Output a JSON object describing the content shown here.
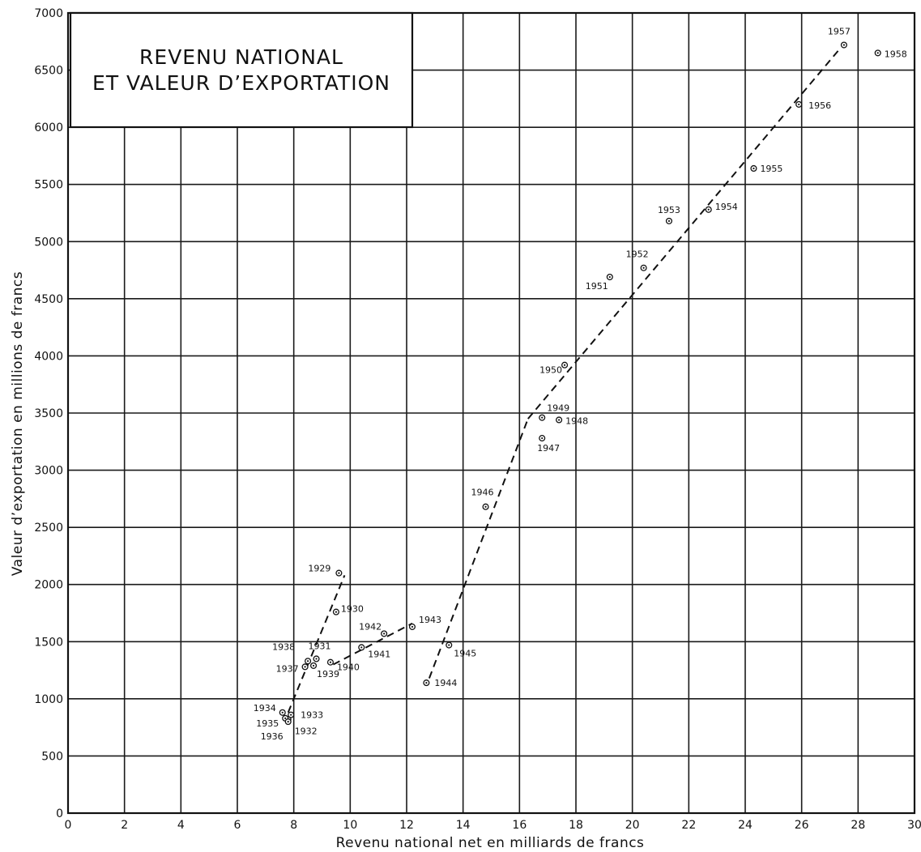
{
  "chart_data": {
    "type": "scatter",
    "title": [
      "REVENU NATIONAL",
      "ET VALEUR D’EXPORTATION"
    ],
    "xlabel": "Revenu national net en milliards de francs",
    "ylabel": "Valeur d’exportation en millions de francs",
    "xlim": [
      0,
      30
    ],
    "ylim": [
      0,
      7000
    ],
    "x_ticks": [
      0,
      2,
      4,
      6,
      8,
      10,
      12,
      14,
      16,
      18,
      20,
      22,
      24,
      26,
      28,
      30
    ],
    "y_ticks": [
      0,
      500,
      1000,
      1500,
      2000,
      2500,
      3000,
      3500,
      4000,
      4500,
      5000,
      5500,
      6000,
      6500,
      7000
    ],
    "y_tick_labels": [
      "0",
      "500",
      "1000",
      "1500",
      "2000",
      "2500",
      "3000",
      "3500",
      "4000",
      "4500",
      "5000",
      "5500",
      "6000",
      "6500",
      "7000"
    ],
    "grid": true,
    "points": [
      {
        "label": "1929",
        "x": 9.6,
        "y": 2100
      },
      {
        "label": "1930",
        "x": 9.5,
        "y": 1760
      },
      {
        "label": "1931",
        "x": 8.8,
        "y": 1350
      },
      {
        "label": "1932",
        "x": 7.8,
        "y": 820
      },
      {
        "label": "1933",
        "x": 7.9,
        "y": 860
      },
      {
        "label": "1934",
        "x": 7.6,
        "y": 880
      },
      {
        "label": "1935",
        "x": 7.7,
        "y": 830
      },
      {
        "label": "1936",
        "x": 7.8,
        "y": 800
      },
      {
        "label": "1937",
        "x": 8.4,
        "y": 1280
      },
      {
        "label": "1938",
        "x": 8.5,
        "y": 1330
      },
      {
        "label": "1939",
        "x": 8.7,
        "y": 1290
      },
      {
        "label": "1940",
        "x": 9.3,
        "y": 1320
      },
      {
        "label": "1941",
        "x": 10.4,
        "y": 1450
      },
      {
        "label": "1942",
        "x": 11.2,
        "y": 1570
      },
      {
        "label": "1943",
        "x": 12.2,
        "y": 1630
      },
      {
        "label": "1944",
        "x": 12.7,
        "y": 1140
      },
      {
        "label": "1945",
        "x": 13.5,
        "y": 1470
      },
      {
        "label": "1946",
        "x": 14.8,
        "y": 2680
      },
      {
        "label": "1947",
        "x": 16.8,
        "y": 3280
      },
      {
        "label": "1948",
        "x": 17.4,
        "y": 3440
      },
      {
        "label": "1949",
        "x": 16.8,
        "y": 3460
      },
      {
        "label": "1950",
        "x": 17.6,
        "y": 3920
      },
      {
        "label": "1951",
        "x": 19.2,
        "y": 4690
      },
      {
        "label": "1952",
        "x": 20.4,
        "y": 4770
      },
      {
        "label": "1953",
        "x": 21.3,
        "y": 5180
      },
      {
        "label": "1954",
        "x": 22.7,
        "y": 5280
      },
      {
        "label": "1955",
        "x": 24.3,
        "y": 5640
      },
      {
        "label": "1956",
        "x": 25.9,
        "y": 6200
      },
      {
        "label": "1957",
        "x": 27.5,
        "y": 6720
      },
      {
        "label": "1958",
        "x": 28.7,
        "y": 6650
      }
    ],
    "trend_lines": [
      {
        "x": [
          7.8,
          9.8
        ],
        "y": [
          880,
          2080
        ]
      },
      {
        "x": [
          9.4,
          12.2
        ],
        "y": [
          1300,
          1660
        ]
      },
      {
        "x": [
          12.8,
          16.3
        ],
        "y": [
          1180,
          3450
        ]
      },
      {
        "x": [
          16.3,
          27.4
        ],
        "y": [
          3450,
          6700
        ]
      }
    ]
  }
}
